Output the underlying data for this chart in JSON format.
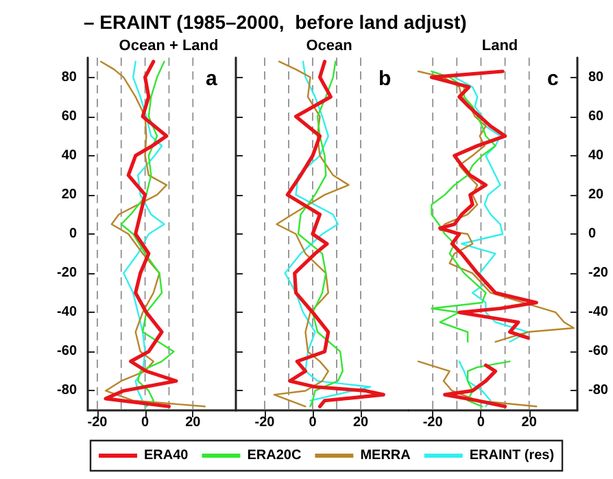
{
  "chart_data": [
    {
      "type": "line",
      "orientation": "horizontal",
      "title": "– ERAINT (1985–2000,  before land adjust)",
      "subtitle": "Ocean + Land",
      "annotations": [
        "a"
      ],
      "legend": "bottom",
      "grid": "x",
      "tick_labels": "xy",
      "xlim": [
        -24,
        38
      ],
      "xticks": [
        -20,
        0,
        20
      ],
      "ylim": [
        -90,
        90
      ],
      "yticks": [
        -80,
        -60,
        -40,
        -20,
        0,
        20,
        40,
        60,
        80
      ],
      "ref_lines": [
        {
          "axis": "x",
          "value": -10,
          "color": "#999999",
          "line_style": "dashed"
        },
        {
          "axis": "x",
          "value": 10,
          "color": "#999999",
          "line_style": "dashed"
        }
      ],
      "series": [
        {
          "name": "ERA40",
          "color": "#e8141b",
          "x": [
            88,
            80,
            70,
            60,
            50,
            45,
            40,
            30,
            20,
            10,
            0,
            -10,
            -20,
            -30,
            -40,
            -50,
            -60,
            -65,
            -70,
            -75,
            -80,
            -84,
            -88
          ],
          "values": [
            3.5,
            0,
            1.5,
            -1,
            9,
            3,
            -4,
            -7,
            0,
            -2,
            -4,
            1.5,
            -2,
            -4,
            0.5,
            7,
            1.5,
            -6,
            0.5,
            13,
            -9,
            -16.5,
            10
          ]
        },
        {
          "name": "ERA20C",
          "color": "#33e633",
          "x": [
            88,
            80,
            70,
            60,
            50,
            40,
            30,
            20,
            10,
            5,
            0,
            -10,
            -20,
            -30,
            -40,
            -50,
            -60,
            -65,
            -70,
            -75,
            -80,
            -85,
            -88
          ],
          "values": [
            8,
            5,
            2.5,
            1.5,
            5,
            1.5,
            2.5,
            0.5,
            -6,
            -10,
            -5,
            0,
            6,
            7,
            0.5,
            -1,
            12,
            7,
            -2,
            -3,
            1.5,
            3.5,
            0.5
          ]
        },
        {
          "name": "MERRA",
          "color": "#b8862b",
          "x": [
            88,
            84,
            80,
            70,
            60,
            50,
            40,
            30,
            25,
            20,
            10,
            5,
            0,
            -10,
            -20,
            -30,
            -40,
            -50,
            -60,
            -65,
            -70,
            -75,
            -80,
            -85,
            -88
          ],
          "values": [
            -18.5,
            -13,
            -9,
            -4,
            0,
            0.5,
            0,
            1.5,
            9,
            5,
            -11,
            -14,
            -7,
            -1,
            6,
            3.5,
            -1,
            -4,
            -2,
            3.5,
            0,
            -10,
            -16.5,
            -5,
            25
          ]
        },
        {
          "name": "ERAINT (res)",
          "color": "#33eeee",
          "x": [
            88,
            80,
            70,
            60,
            50,
            45,
            40,
            30,
            20,
            10,
            5,
            0,
            -10,
            -20,
            -30,
            -40,
            -50,
            -60,
            -70,
            -75,
            -80,
            -88
          ],
          "values": [
            -4,
            -5,
            -2,
            0.5,
            2.5,
            7,
            4,
            -3,
            -2,
            2.5,
            8,
            1.5,
            -3,
            -9,
            -5,
            -3,
            -1,
            0,
            -1,
            -4,
            -3,
            0
          ]
        }
      ]
    },
    {
      "type": "line",
      "orientation": "horizontal",
      "subtitle": "Ocean",
      "annotations": [
        "b"
      ],
      "grid": "x",
      "tick_labels": "x",
      "xlim": [
        -32,
        40
      ],
      "xticks": [
        -20,
        0,
        20
      ],
      "ylim": [
        -90,
        90
      ],
      "yticks": [
        -80,
        -60,
        -40,
        -20,
        0,
        20,
        40,
        60,
        80
      ],
      "ref_lines": [
        {
          "axis": "x",
          "value": -10,
          "color": "#999999",
          "line_style": "dashed"
        },
        {
          "axis": "x",
          "value": 10,
          "color": "#999999",
          "line_style": "dashed"
        }
      ],
      "series": [
        {
          "color": "#e8141b",
          "x": [
            88,
            80,
            70,
            60,
            50,
            40,
            30,
            20,
            10,
            0,
            -5,
            -10,
            -20,
            -30,
            -40,
            -50,
            -60,
            -65,
            -70,
            -75,
            -78,
            -80,
            -82,
            -85,
            -88
          ],
          "values": [
            5,
            3,
            7.5,
            -7,
            3,
            0,
            -5,
            -10.5,
            3,
            0,
            6,
            1,
            -7.5,
            -7,
            0,
            6.5,
            5,
            -6.5,
            -3,
            -9.5,
            1,
            22,
            29.5,
            5,
            3
          ]
        },
        {
          "color": "#33e633",
          "x": [
            88,
            80,
            70,
            60,
            50,
            40,
            30,
            20,
            10,
            0,
            -10,
            -20,
            -30,
            -40,
            -50,
            -60,
            -70,
            -75,
            -80,
            -85,
            -88
          ],
          "values": [
            9.5,
            8.5,
            5.5,
            2,
            3,
            5,
            5.5,
            1,
            -5,
            -6,
            4,
            5.5,
            4,
            0,
            2,
            11.5,
            12.5,
            10.5,
            1,
            0,
            -1
          ]
        },
        {
          "color": "#b8862b",
          "x": [
            88,
            84,
            80,
            70,
            60,
            50,
            40,
            30,
            25,
            20,
            10,
            5,
            0,
            -10,
            -20,
            -30,
            -40,
            -50,
            -60,
            -65,
            -70,
            -75,
            -80,
            -82,
            -88
          ],
          "values": [
            -14,
            -7,
            -1,
            -2,
            3,
            2,
            3,
            8.5,
            15,
            5,
            -8.5,
            -15,
            -7,
            -3,
            5.5,
            6.5,
            -1,
            -3,
            -2,
            3,
            6.5,
            4,
            -3,
            -16,
            -3
          ]
        },
        {
          "color": "#33eeee",
          "x": [
            88,
            80,
            70,
            60,
            50,
            40,
            30,
            20,
            10,
            5,
            0,
            -10,
            -20,
            -30,
            -40,
            -50,
            -60,
            -70,
            -75,
            -78,
            -85
          ],
          "values": [
            -4,
            -3,
            1,
            4,
            6.5,
            3,
            -6,
            -7,
            8.5,
            10.5,
            4,
            -5,
            -11.5,
            -7,
            -4,
            1,
            -2,
            -3,
            2,
            24,
            -1
          ]
        }
      ]
    },
    {
      "type": "line",
      "orientation": "horizontal",
      "subtitle": "Land",
      "annotations": [
        "c"
      ],
      "grid": "x",
      "xlim": [
        -30,
        40
      ],
      "xticks": [
        -20,
        0,
        20
      ],
      "ylim": [
        -90,
        90
      ],
      "yticks": [
        -80,
        -60,
        -40,
        -20,
        0,
        20,
        40,
        60,
        80
      ],
      "ref_lines": [
        {
          "axis": "x",
          "value": -10,
          "color": "#999999",
          "line_style": "dashed"
        },
        {
          "axis": "x",
          "value": 10,
          "color": "#999999",
          "line_style": "dashed"
        }
      ],
      "series": [
        {
          "color": "#e8141b",
          "x": [
            83,
            80,
            75,
            70,
            65,
            60,
            55,
            50,
            45,
            40,
            35,
            30,
            25,
            20,
            15,
            10,
            5,
            3,
            0,
            -5,
            -10,
            -20,
            -30,
            -35,
            -38,
            -40,
            -45,
            -50,
            -53,
            -60,
            -67,
            -70,
            -75,
            -80,
            -82,
            -85,
            -88
          ],
          "values": [
            9,
            -20.5,
            -5,
            -9,
            -5,
            -0.5,
            4,
            10,
            -1.5,
            -11,
            -8,
            -4.5,
            2,
            -4.5,
            -3.5,
            -8,
            -11,
            -17,
            -9,
            -12,
            -8,
            -1.5,
            6,
            23,
            8,
            -9,
            15.5,
            12,
            19.5,
            null,
            2,
            6,
            2,
            -3.5,
            -15,
            -1.5,
            10
          ]
        },
        {
          "color": "#33e633",
          "x": [
            83,
            80,
            75,
            70,
            65,
            60,
            55,
            50,
            45,
            40,
            35,
            30,
            25,
            20,
            15,
            10,
            5,
            0,
            -5,
            -10,
            -20,
            -30,
            -35,
            -38,
            -40,
            -45,
            -50,
            -55,
            -60,
            -65,
            -68,
            -70,
            -75,
            -80,
            -85,
            -88
          ],
          "values": [
            -20.5,
            -13,
            -7,
            -7,
            -3.5,
            -1.5,
            0.5,
            2,
            6,
            0.5,
            -3.5,
            -5.5,
            -11,
            -15,
            -20.5,
            -20.5,
            -17.5,
            -15,
            -11,
            -13,
            -7,
            2,
            0.5,
            -20.5,
            -9,
            -17,
            -5.5,
            -5.5,
            null,
            12,
            -1.5,
            -5.5,
            -5.5,
            -3.5,
            -5.5,
            0.5
          ]
        },
        {
          "color": "#b8862b",
          "x": [
            83,
            80,
            75,
            70,
            65,
            60,
            55,
            50,
            45,
            40,
            35,
            30,
            25,
            20,
            15,
            10,
            5,
            2,
            0,
            -5,
            -10,
            -15,
            -20,
            -30,
            -35,
            -40,
            -45,
            -48,
            -50,
            -55,
            -60,
            -65,
            -70,
            -75,
            -80,
            -85,
            -88
          ],
          "values": [
            -26,
            -15.5,
            -9,
            -8,
            -4.5,
            -2.5,
            2,
            -0.5,
            1.5,
            -3.5,
            -9,
            -5.5,
            -1.5,
            -3.5,
            -1.5,
            -5.5,
            -15,
            -17,
            -5.5,
            -3.5,
            -11,
            -13,
            -3.5,
            4,
            17.5,
            31,
            34.5,
            38.5,
            19.5,
            6,
            null,
            -26,
            -13,
            -15.5,
            -12,
            -1.5,
            23
          ]
        },
        {
          "color": "#33eeee",
          "x": [
            80,
            75,
            70,
            65,
            60,
            55,
            50,
            45,
            40,
            30,
            25,
            20,
            15,
            10,
            5,
            0,
            -5,
            -10,
            -20,
            -25,
            -30,
            -35,
            -40,
            -45,
            -50,
            -55,
            -60,
            -65,
            -70,
            -75,
            -80,
            -85,
            -88
          ],
          "values": [
            -11,
            -3.5,
            -1.5,
            -2.5,
            0.5,
            2,
            8,
            6,
            2,
            6,
            8,
            3,
            1.5,
            4,
            8,
            9,
            -8,
            6,
            -0.5,
            2,
            -3.5,
            2,
            2,
            6,
            19.5,
            12,
            null,
            -9,
            -7,
            -5.5,
            0.5,
            4,
            2
          ]
        }
      ]
    }
  ]
}
